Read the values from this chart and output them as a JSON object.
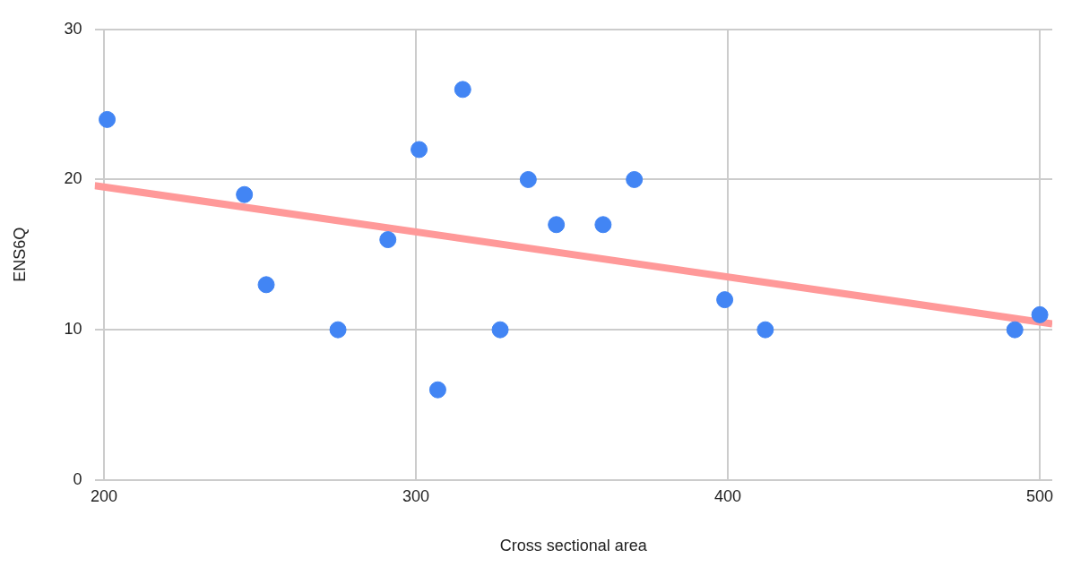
{
  "chart_data": {
    "type": "scatter",
    "xlabel": "Cross sectional area",
    "ylabel": "ENS6Q",
    "xlim": [
      197,
      504
    ],
    "xticks": [
      200,
      300,
      400,
      500
    ],
    "ylim": [
      0,
      30
    ],
    "yticks": [
      0,
      10,
      20,
      30
    ],
    "grid": true,
    "legend": false,
    "marker": "circle",
    "series": [
      {
        "color": "#4285f4",
        "x": [
          201,
          245,
          252,
          275,
          291,
          301,
          307,
          315,
          327,
          336,
          345,
          360,
          370,
          399,
          412,
          492,
          500
        ],
        "values": [
          24,
          19,
          13,
          10,
          16,
          22,
          6,
          26,
          10,
          20,
          17,
          17,
          20,
          12,
          10,
          10,
          11
        ]
      },
      {
        "type": "line",
        "marker": "none",
        "color": "#ff9999",
        "x": [
          197,
          504
        ],
        "values": [
          19.6,
          10.4
        ]
      }
    ]
  }
}
